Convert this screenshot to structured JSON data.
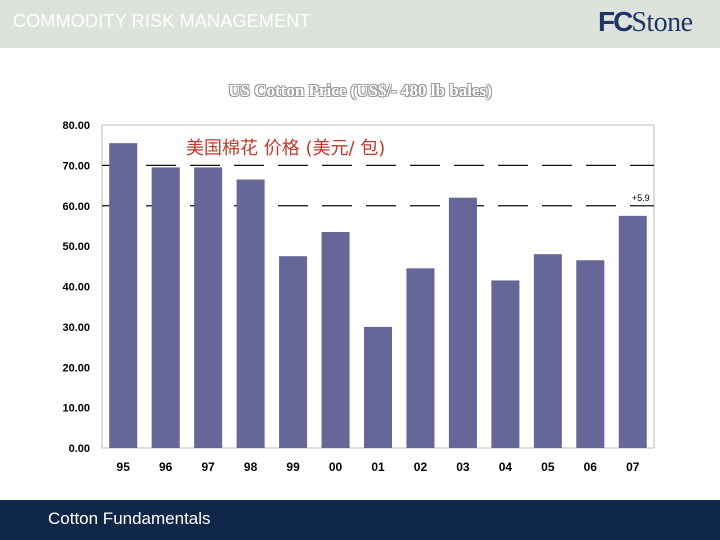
{
  "header": {
    "title": "COMMODITY RISK MANAGEMENT",
    "logo_text": "FCStone"
  },
  "footer": {
    "text": "Cotton Fundamentals"
  },
  "colors": {
    "bar": "#666699",
    "header_band": "#dde3dc",
    "footer": "#0f2748",
    "subtitle": "#c0392b"
  },
  "chart_data": {
    "type": "bar",
    "title": "US Cotton Price (US$/- 480 lb bales)",
    "subtitle": "美国棉花 价格 (美元/ 包)",
    "categories": [
      "95",
      "96",
      "97",
      "98",
      "99",
      "00",
      "01",
      "02",
      "03",
      "04",
      "05",
      "06",
      "07"
    ],
    "values": [
      75.5,
      69.5,
      69.5,
      66.5,
      47.5,
      53.5,
      30.0,
      44.5,
      62.0,
      41.5,
      48.0,
      46.5,
      57.5
    ],
    "ylim": [
      0,
      80
    ],
    "yticks": [
      "0.00",
      "10.00",
      "20.00",
      "30.00",
      "40.00",
      "50.00",
      "60.00",
      "70.00",
      "80.00"
    ],
    "reference_lines": [
      60,
      70
    ],
    "annotation": "+5.9",
    "grid": false,
    "legend": "none"
  }
}
